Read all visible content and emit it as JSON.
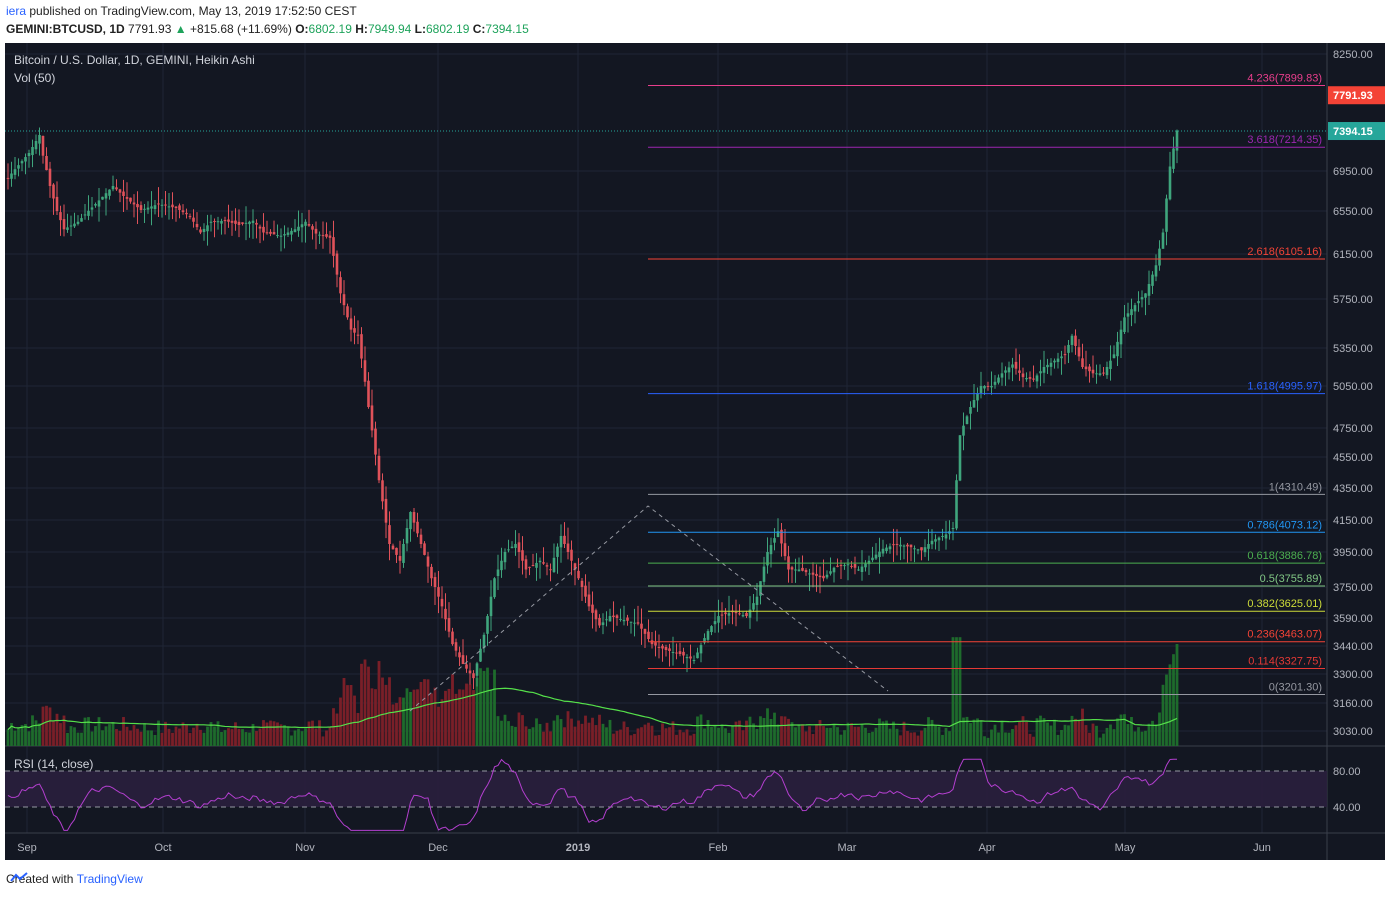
{
  "header": {
    "author": "iera",
    "published": "published on TradingView.com, May 13, 2019 17:52:50 CEST"
  },
  "symbol_bar": {
    "symbol": "GEMINI:BTCUSD, 1D",
    "last": "7791.93",
    "change_arrow": "▲",
    "change": "+815.68 (+11.69%)",
    "o_label": "O:",
    "o": "6802.19",
    "h_label": "H:",
    "h": "7949.94",
    "l_label": "L:",
    "l": "6802.19",
    "c_label": "C:",
    "c": "7394.15"
  },
  "footer": {
    "created": "Created with",
    "brand": "TradingView"
  },
  "chart_data": {
    "type": "candlestick",
    "title": "Bitcoin / U.S. Dollar, 1D, GEMINI, Heikin Ashi",
    "volume_label": "Vol (50)",
    "rsi_label": "RSI (14, close)",
    "colors": {
      "up": "#3fa57d",
      "down": "#e0525a",
      "bg": "#131722",
      "vol_up": "#1e6b2c",
      "vol_down": "#7a1f28",
      "vol_ma": "#55e04a",
      "rsi": "#b33fcf"
    },
    "y_ticks": [
      "8250.00",
      "7791.93",
      "7394.15",
      "6950.00",
      "6550.00",
      "6150.00",
      "5750.00",
      "5350.00",
      "5050.00",
      "4750.00",
      "4550.00",
      "4350.00",
      "4150.00",
      "3950.00",
      "3750.00",
      "3590.00",
      "3440.00",
      "3300.00",
      "3160.00",
      "3030.00"
    ],
    "rsi_ticks": [
      "80.00",
      "40.00"
    ],
    "x_ticks": [
      "Sep",
      "Oct",
      "Nov",
      "Dec",
      "2019",
      "Feb",
      "Mar",
      "Apr",
      "May",
      "Jun"
    ],
    "last_price": {
      "label": "7791.93",
      "color": "#f44336"
    },
    "close_price": {
      "label": "7394.15",
      "color": "#26a69a"
    },
    "fib_levels": [
      {
        "label": "4.236(7899.83)",
        "value": 7899.83,
        "color": "#e83e8c"
      },
      {
        "label": "3.618(7214.35)",
        "value": 7214.35,
        "color": "#9c27b0"
      },
      {
        "label": "2.618(6105.16)",
        "value": 6105.16,
        "color": "#f44336"
      },
      {
        "label": "1.618(4995.97)",
        "value": 4995.97,
        "color": "#2962ff"
      },
      {
        "label": "1(4310.49)",
        "value": 4310.49,
        "color": "#9598a1"
      },
      {
        "label": "0.786(4073.12)",
        "value": 4073.12,
        "color": "#2196f3"
      },
      {
        "label": "0.618(3886.78)",
        "value": 3886.78,
        "color": "#4caf50"
      },
      {
        "label": "0.5(3755.89)",
        "value": 3755.89,
        "color": "#81c784"
      },
      {
        "label": "0.382(3625.01)",
        "value": 3625.01,
        "color": "#cddc39"
      },
      {
        "label": "0.236(3463.07)",
        "value": 3463.07,
        "color": "#f44336"
      },
      {
        "label": "0.114(3327.75)",
        "value": 3327.75,
        "color": "#e53935"
      },
      {
        "label": "0(3201.30)",
        "value": 3201.3,
        "color": "#9598a1"
      }
    ],
    "price_path": [
      [
        0,
        6880
      ],
      [
        6,
        7150
      ],
      [
        9,
        7350
      ],
      [
        10,
        7120
      ],
      [
        12,
        6800
      ],
      [
        14,
        6550
      ],
      [
        16,
        6380
      ],
      [
        20,
        6450
      ],
      [
        25,
        6620
      ],
      [
        30,
        6800
      ],
      [
        33,
        6700
      ],
      [
        38,
        6560
      ],
      [
        43,
        6620
      ],
      [
        48,
        6580
      ],
      [
        52,
        6500
      ],
      [
        55,
        6350
      ],
      [
        58,
        6450
      ],
      [
        62,
        6460
      ],
      [
        66,
        6420
      ],
      [
        70,
        6460
      ],
      [
        73,
        6350
      ],
      [
        78,
        6320
      ],
      [
        82,
        6380
      ],
      [
        85,
        6450
      ],
      [
        88,
        6340
      ],
      [
        92,
        6300
      ],
      [
        95,
        5800
      ],
      [
        98,
        5500
      ],
      [
        100,
        5450
      ],
      [
        103,
        4900
      ],
      [
        106,
        4400
      ],
      [
        109,
        4000
      ],
      [
        112,
        3900
      ],
      [
        115,
        4200
      ],
      [
        118,
        4000
      ],
      [
        121,
        3800
      ],
      [
        124,
        3650
      ],
      [
        127,
        3450
      ],
      [
        130,
        3350
      ],
      [
        133,
        3280
      ],
      [
        136,
        3500
      ],
      [
        139,
        3800
      ],
      [
        142,
        3950
      ],
      [
        145,
        4000
      ],
      [
        148,
        3850
      ],
      [
        152,
        3900
      ],
      [
        155,
        3850
      ],
      [
        158,
        4050
      ],
      [
        161,
        3900
      ],
      [
        163,
        3800
      ],
      [
        166,
        3650
      ],
      [
        169,
        3550
      ],
      [
        172,
        3600
      ],
      [
        176,
        3580
      ],
      [
        180,
        3560
      ],
      [
        184,
        3450
      ],
      [
        188,
        3420
      ],
      [
        192,
        3400
      ],
      [
        196,
        3370
      ],
      [
        200,
        3520
      ],
      [
        203,
        3600
      ],
      [
        207,
        3620
      ],
      [
        211,
        3600
      ],
      [
        214,
        3700
      ],
      [
        217,
        3950
      ],
      [
        220,
        4080
      ],
      [
        223,
        3850
      ],
      [
        226,
        3850
      ],
      [
        230,
        3820
      ],
      [
        233,
        3800
      ],
      [
        236,
        3860
      ],
      [
        240,
        3880
      ],
      [
        243,
        3850
      ],
      [
        246,
        3900
      ],
      [
        250,
        3970
      ],
      [
        254,
        4000
      ],
      [
        258,
        3980
      ],
      [
        261,
        3960
      ],
      [
        264,
        4020
      ],
      [
        268,
        4060
      ],
      [
        270,
        4100
      ],
      [
        272,
        4700
      ],
      [
        275,
        4900
      ],
      [
        278,
        5050
      ],
      [
        281,
        5050
      ],
      [
        284,
        5150
      ],
      [
        287,
        5220
      ],
      [
        290,
        5120
      ],
      [
        293,
        5100
      ],
      [
        296,
        5200
      ],
      [
        299,
        5250
      ],
      [
        302,
        5300
      ],
      [
        304,
        5450
      ],
      [
        307,
        5200
      ],
      [
        310,
        5150
      ],
      [
        313,
        5150
      ],
      [
        316,
        5300
      ],
      [
        319,
        5600
      ],
      [
        322,
        5700
      ],
      [
        325,
        5800
      ],
      [
        328,
        6050
      ],
      [
        330,
        6350
      ],
      [
        332,
        7000
      ],
      [
        334,
        7400
      ]
    ]
  }
}
